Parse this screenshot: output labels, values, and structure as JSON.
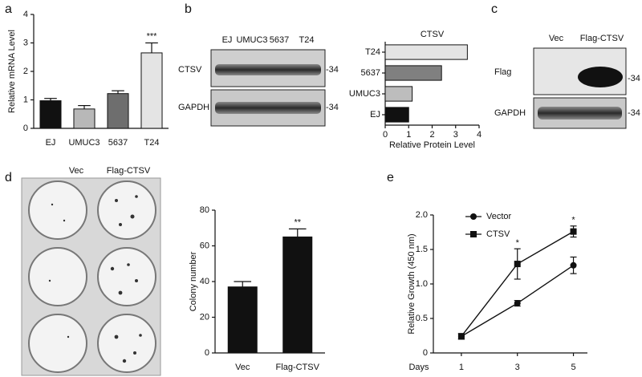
{
  "panel_labels": [
    "a",
    "b",
    "c",
    "d",
    "e"
  ],
  "chart_data": [
    {
      "type": "bar",
      "ylabel": "Relative mRNA Level",
      "categories": [
        "EJ",
        "UMUC3",
        "5637",
        "T24"
      ],
      "values": [
        0.97,
        0.68,
        1.22,
        2.65
      ],
      "errors": [
        0.08,
        0.12,
        0.1,
        0.35
      ],
      "colors": [
        "#111111",
        "#b8b8b8",
        "#6e6e6e",
        "#e4e4e4"
      ],
      "annotation": "***",
      "ylim": [
        0,
        4
      ],
      "yticks": [
        0,
        1,
        2,
        3,
        4
      ]
    },
    {
      "type": "barh",
      "title": "CTSV",
      "xlabel": "Relative Protein Level",
      "categories": [
        "EJ",
        "UMUC3",
        "5637",
        "T24"
      ],
      "values": [
        1.0,
        1.15,
        2.4,
        3.5
      ],
      "colors": [
        "#111111",
        "#bdbdbd",
        "#808080",
        "#e4e4e4"
      ],
      "xlim": [
        0,
        4
      ],
      "xticks": [
        0,
        1,
        2,
        3,
        4
      ]
    },
    {
      "type": "bar",
      "ylabel": "Colony number",
      "categories": [
        "Vec",
        "Flag-CTSV"
      ],
      "values": [
        37,
        65
      ],
      "errors": [
        3,
        4.5
      ],
      "colors": [
        "#111111",
        "#111111"
      ],
      "annotation": "**",
      "ylim": [
        0,
        80
      ],
      "yticks": [
        0,
        20,
        40,
        60,
        80
      ]
    },
    {
      "type": "line",
      "ylabel": "Relative Growth (450 nm)",
      "xlabel": "Days",
      "x": [
        1,
        3,
        5
      ],
      "series": [
        {
          "name": "Vector",
          "color": "#111111",
          "marker": "circle",
          "values": [
            0.24,
            0.72,
            1.27
          ],
          "errors": [
            0.04,
            0.04,
            0.12
          ]
        },
        {
          "name": "CTSV",
          "color": "#111111",
          "marker": "square",
          "values": [
            0.24,
            1.29,
            1.76
          ],
          "errors": [
            0.04,
            0.22,
            0.08
          ]
        }
      ],
      "annotations": [
        {
          "text": "*",
          "x": 3
        },
        {
          "text": "*",
          "x": 5
        }
      ],
      "xlim": [
        0,
        5.5
      ],
      "xticks": [
        1,
        3,
        5
      ],
      "ylim": [
        0,
        2
      ],
      "yticks": [
        0,
        0.5,
        {
          "value": 1,
          "label": "1.0"
        },
        1.5,
        {
          "value": 2,
          "label": "2.0"
        }
      ]
    }
  ],
  "blots": {
    "b": {
      "lanes": [
        "EJ",
        "UMUC3",
        "5637",
        "T24"
      ],
      "rows": [
        "CTSV",
        "GAPDH"
      ],
      "marker": "-34"
    },
    "c": {
      "lanes": [
        "Vec",
        "Flag-CTSV"
      ],
      "rows": [
        "Flag",
        "GAPDH"
      ],
      "marker": "-34"
    }
  },
  "plates": {
    "labels": [
      "Vec",
      "Flag-CTSV"
    ]
  }
}
